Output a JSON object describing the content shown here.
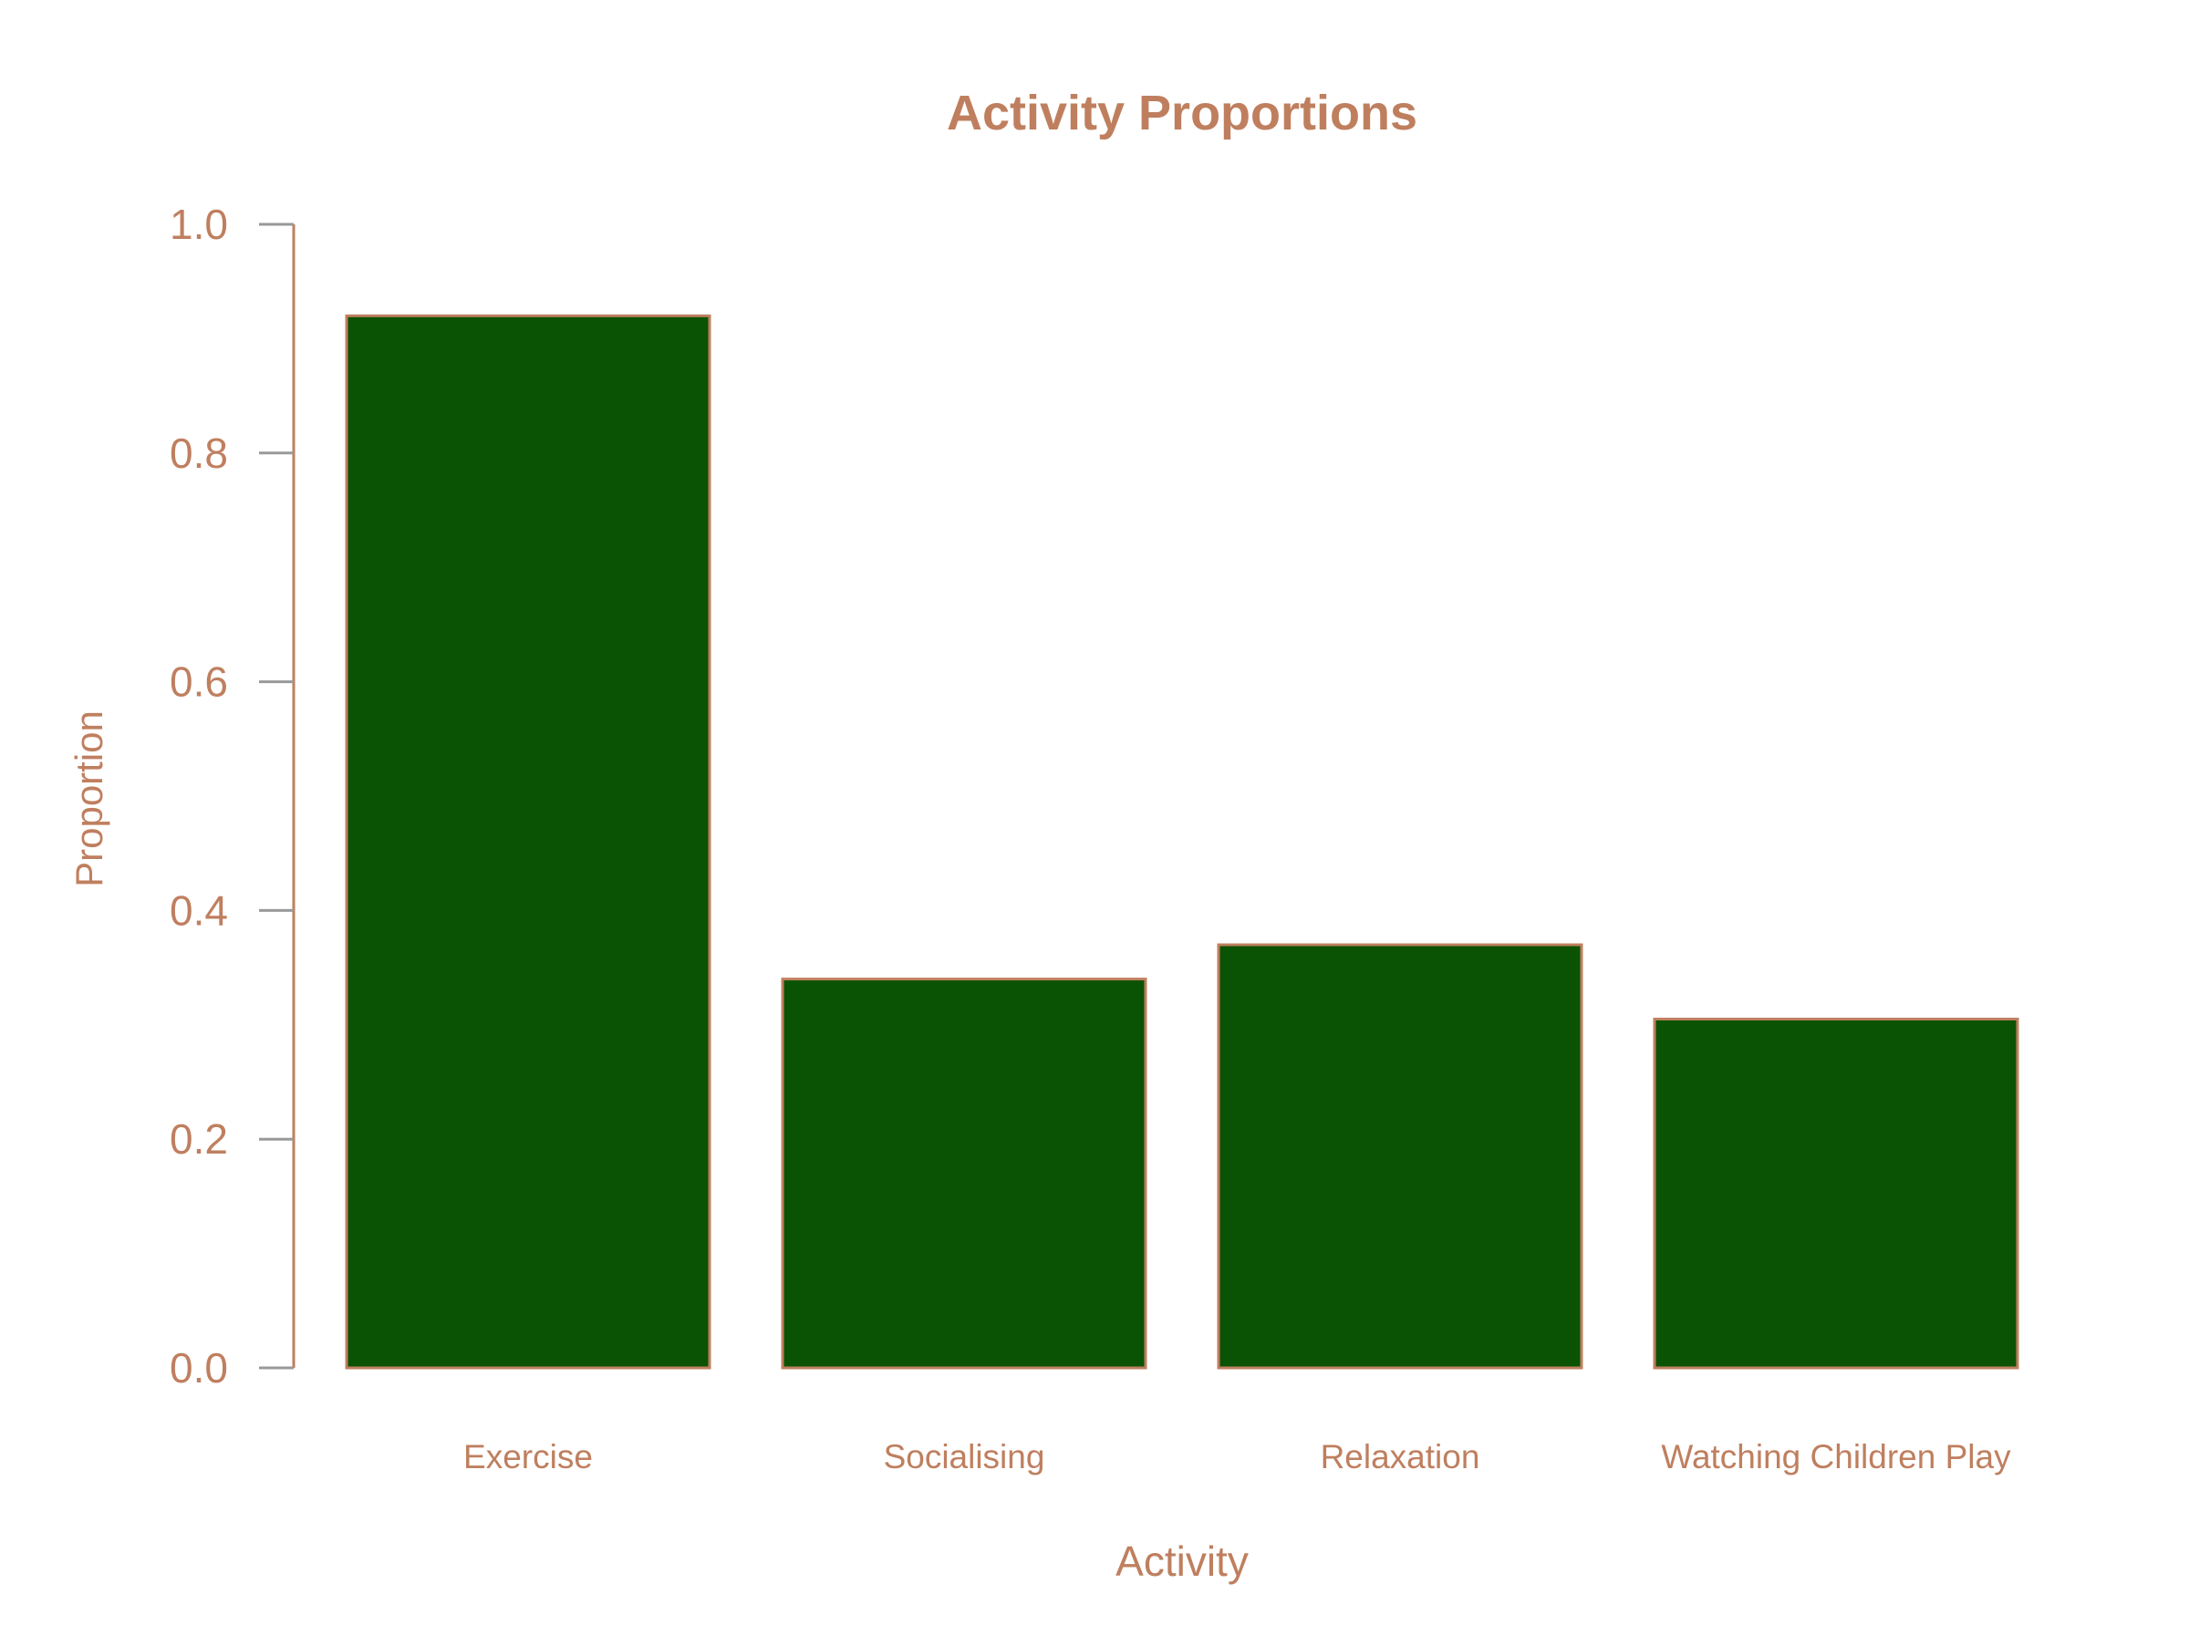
{
  "colors": {
    "text": "#bf7f5f",
    "bar_fill": "#0b5304",
    "bar_stroke": "#bf7f5f",
    "axis_line": "#bf7f5f",
    "tick_mark": "#999999"
  },
  "chart_data": {
    "type": "bar",
    "title": "Activity Proportions",
    "xlabel": "Activity",
    "ylabel": "Proportion",
    "categories": [
      "Exercise",
      "Socialising",
      "Relaxation",
      "Watching Children Play"
    ],
    "values": [
      0.92,
      0.34,
      0.37,
      0.305
    ],
    "ylim": [
      0,
      1.0
    ],
    "yticks": [
      "0.0",
      "0.2",
      "0.4",
      "0.6",
      "0.8",
      "1.0"
    ],
    "grid": false,
    "legend": "none"
  }
}
